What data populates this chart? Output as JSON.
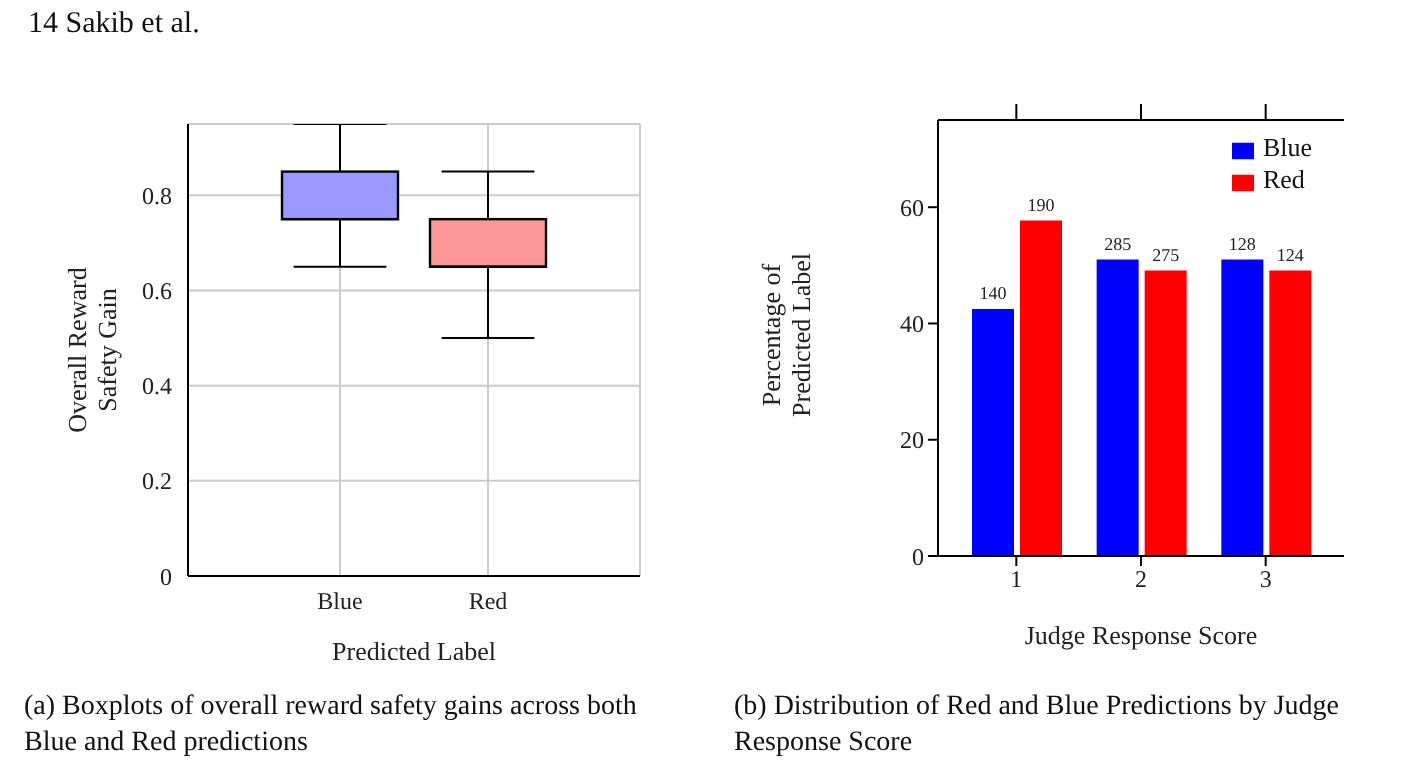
{
  "chart_data": [
    {
      "type": "box",
      "xlabel": "Predicted Label",
      "ylabel": "Overall Reward Safety Gain",
      "categories": [
        "Blue",
        "Red"
      ],
      "colors": [
        "#9999ff",
        "#ff9999"
      ],
      "boxes": [
        {
          "low": 0.65,
          "q1": 0.75,
          "median": 0.75,
          "q3": 0.85,
          "high": 0.95
        },
        {
          "low": 0.5,
          "q1": 0.65,
          "median": 0.65,
          "q3": 0.75,
          "high": 0.85
        }
      ],
      "ylim": [
        0,
        0.95
      ],
      "yticks": [
        0,
        0.2,
        0.4,
        0.6,
        0.8
      ],
      "grid": true,
      "annotations": [
        "14 Sakib et al.",
        "(a) Boxplots of overall reward safety gains across both Blue and Red predictions"
      ]
    },
    {
      "type": "bar",
      "xlabel": "Judge Response Score",
      "ylabel": "Percentage of Predicted Label",
      "categories": [
        "1",
        "2",
        "3"
      ],
      "series": [
        {
          "name": "Blue",
          "color": "#0000ff",
          "values": [
            42.5,
            51,
            51
          ]
        },
        {
          "name": "Red",
          "color": "#ff0000",
          "values": [
            57.7,
            49.1,
            49.1
          ]
        }
      ],
      "ylim": [
        0,
        75
      ],
      "yticks": [
        0,
        20,
        40,
        60
      ],
      "legend": "top right",
      "grid": false,
      "annotations": [
        "(b) Distribution of Red and Blue Predictions by Judge Response Score",
        {
          "text": "140",
          "x": "1",
          "y": 42.5
        },
        {
          "text": "190",
          "x": "1",
          "y": 57.7
        },
        {
          "text": "285",
          "x": "2",
          "y": 51
        },
        {
          "text": "275",
          "x": "2",
          "y": 49.1
        },
        {
          "text": "128",
          "x": "3",
          "y": 51
        },
        {
          "text": "124",
          "x": "3",
          "y": 49.1
        }
      ]
    }
  ]
}
